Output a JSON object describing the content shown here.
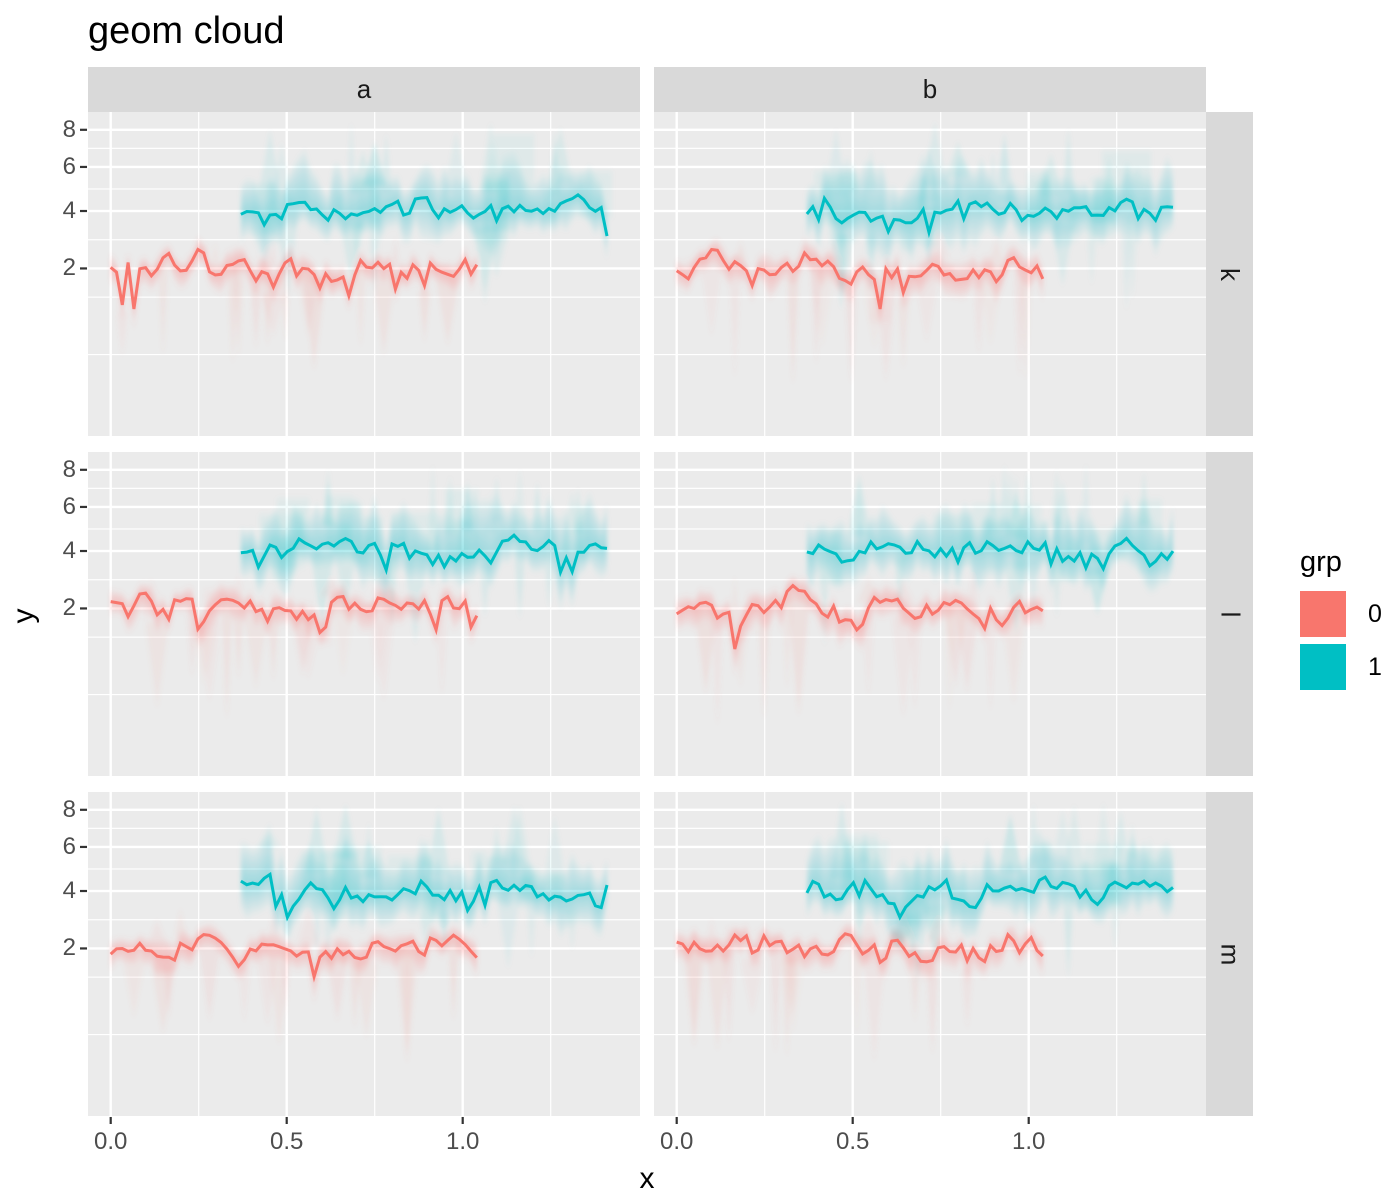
{
  "title": "geom cloud",
  "colors": {
    "background": "#FFFFFF",
    "panel_bg": "#EBEBEB",
    "strip_bg": "#D9D9D9",
    "grid": "#FFFFFF",
    "axis_text": "#4D4D4D",
    "tick_mark": "#333333",
    "text_dark": "#1A1A1A",
    "grp0": "#F8766D",
    "grp1": "#00BFC4"
  },
  "chart_data": {
    "type": "area",
    "subtype": "cloud-ribbon with uncertainty fog, faceted grid",
    "title": "geom cloud",
    "xlabel": "x",
    "ylabel": "y",
    "facet_cols": [
      "a",
      "b"
    ],
    "facet_rows": [
      "k",
      "l",
      "m"
    ],
    "x_ticks": {
      "labels": [
        "0.0",
        "0.5",
        "1.0"
      ],
      "values": [
        0,
        0.5,
        1.0
      ]
    },
    "x_minor": [
      0.25,
      0.75,
      1.25
    ],
    "y_ticks": {
      "labels": [
        "2",
        "4",
        "6",
        "8"
      ],
      "values": [
        2,
        4,
        6,
        8
      ]
    },
    "y_minor_sqrt": [
      0.5355,
      1.1213,
      1.7071,
      2.2247,
      2.639,
      3.0179
    ],
    "y_scale": "sqrt",
    "x_range": [
      -0.0645,
      1.504
    ],
    "y_range_sqrt": [
      -0.295,
      3.01
    ],
    "grid": "on",
    "legend_position": "right",
    "legend": {
      "title": "grp",
      "entries": [
        {
          "label": "0",
          "color": "#F8766D"
        },
        {
          "label": "1",
          "color": "#00BFC4"
        }
      ]
    },
    "series": [
      {
        "grp": "0",
        "color": "#F8766D",
        "x_start": 0.0,
        "x_end": 1.04,
        "points": 64,
        "y_level": 2,
        "y_sd": 0.22,
        "cloud_up": 0.75,
        "cloud_down": 0.9,
        "tall_top": false,
        "down_spikes": 14,
        "up_spikes": 4,
        "spike_depth_min": 0.04,
        "spike_depth_max": 0.55,
        "spike_top": 3.4,
        "description": "jagged line near y=2 over x in [0,1] with downward fading cloud tails"
      },
      {
        "grp": "1",
        "color": "#00BFC4",
        "x_start": 0.37,
        "x_end": 1.41,
        "points": 64,
        "y_level": 4,
        "y_sd": 0.26,
        "cloud_up": 2.4,
        "cloud_down": 2.1,
        "tall_top": true,
        "down_spikes": 7,
        "up_spikes": 12,
        "spike_depth_min": 0.9,
        "spike_depth_max": 2.0,
        "spike_top": 8.5,
        "description": "jagged line near y=4 over x in [0.37,1.41] with tall teal cloud"
      }
    ],
    "panels": [
      {
        "row": "k",
        "col": "a",
        "seed": 101
      },
      {
        "row": "k",
        "col": "b",
        "seed": 202
      },
      {
        "row": "l",
        "col": "a",
        "seed": 303
      },
      {
        "row": "l",
        "col": "b",
        "seed": 404
      },
      {
        "row": "m",
        "col": "a",
        "seed": 505
      },
      {
        "row": "m",
        "col": "b",
        "seed": 606
      }
    ]
  }
}
